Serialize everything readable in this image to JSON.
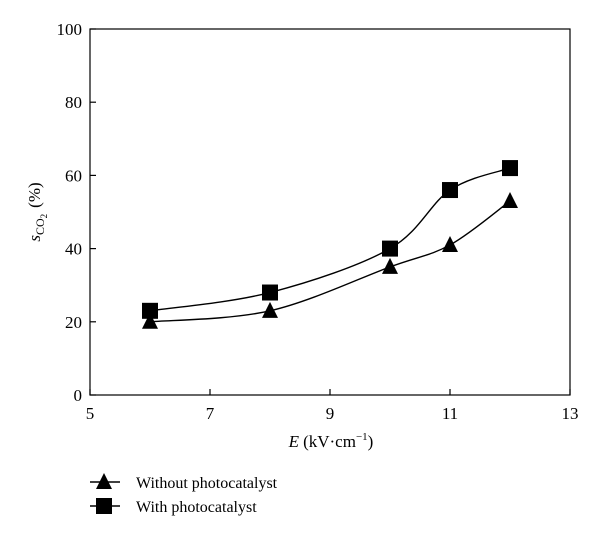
{
  "chart_data": {
    "type": "line",
    "xlabel_italic": "E",
    "xlabel_unit": "(kV·cm",
    "xlabel_unit_exp": "−1",
    "xlabel_unit_close": ")",
    "ylabel_italic": "s",
    "ylabel_sub": "CO",
    "ylabel_sub2": "2",
    "ylabel_unit": "(%)",
    "xlim": [
      5,
      13
    ],
    "ylim": [
      0,
      100
    ],
    "xticks": [
      5,
      7,
      9,
      11,
      13
    ],
    "yticks": [
      0,
      20,
      40,
      60,
      80,
      100
    ],
    "xtick_labels": [
      "5",
      "7",
      "9",
      "11",
      "13"
    ],
    "ytick_labels": [
      "0",
      "20",
      "40",
      "60",
      "80",
      "100"
    ],
    "legend_placement": "bottom-left, below plot",
    "series": [
      {
        "name": "Without photocatalyst",
        "marker": "triangle",
        "x": [
          6,
          8,
          10,
          11,
          12
        ],
        "y": [
          20,
          23,
          35,
          41,
          53
        ]
      },
      {
        "name": "With photocatalyst",
        "marker": "square",
        "x": [
          6,
          8,
          10,
          11,
          12
        ],
        "y": [
          23,
          28,
          40,
          56,
          62
        ]
      }
    ]
  }
}
